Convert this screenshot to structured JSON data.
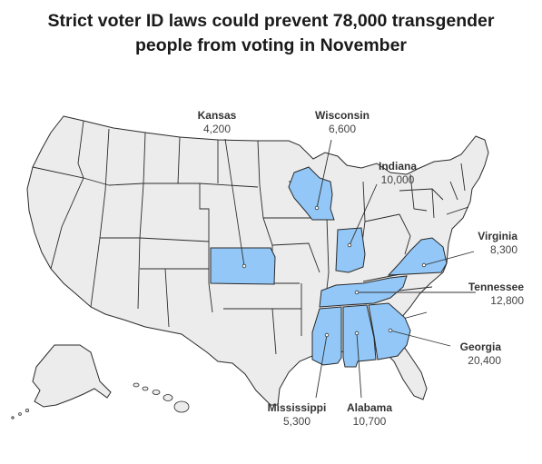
{
  "title": {
    "line1": "Strict voter ID laws could prevent 78,000 transgender",
    "line2": "people from voting in November"
  },
  "colors": {
    "highlight": "#92c7f7",
    "base": "#ececec",
    "border": "#2a2a2a",
    "leader": "#333333"
  },
  "states": [
    {
      "name": "Kansas",
      "value": "4,200"
    },
    {
      "name": "Wisconsin",
      "value": "6,600"
    },
    {
      "name": "Indiana",
      "value": "10,000"
    },
    {
      "name": "Virginia",
      "value": "8,300"
    },
    {
      "name": "Tennessee",
      "value": "12,800"
    },
    {
      "name": "Georgia",
      "value": "20,400"
    },
    {
      "name": "Mississippi",
      "value": "5,300"
    },
    {
      "name": "Alabama",
      "value": "10,700"
    }
  ]
}
